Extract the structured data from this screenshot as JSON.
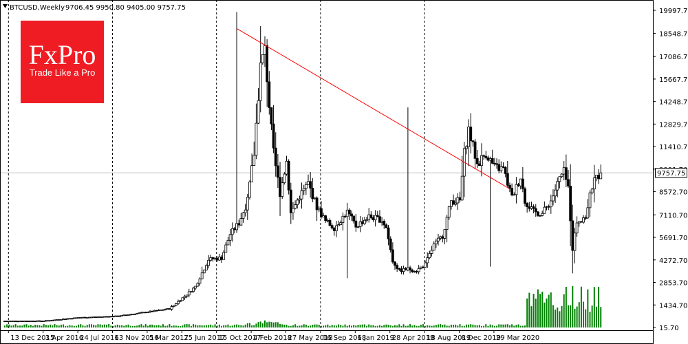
{
  "header": {
    "symbol_label": "BTCUSD,Weekly",
    "ohlc_text": "9706.45 9950.80 9405.00 9757.75"
  },
  "logo": {
    "brand": "FxPro",
    "tagline": "Trade Like a Pro",
    "color": "#ef1c24"
  },
  "chart_data": {
    "type": "candlestick",
    "price_axis": {
      "ticks": [
        "19997.70",
        "18548.70",
        "17086.70",
        "15667.70",
        "14248.70",
        "12829.70",
        "11410.70",
        "9991.70",
        "8572.70",
        "7110.70",
        "5691.70",
        "4272.70",
        "2853.70",
        "1434.70",
        "15.70"
      ],
      "ylim": [
        15.7,
        19997.7
      ]
    },
    "time_axis": {
      "ticks": [
        "13 Dec 2015",
        "3 Apr 2016",
        "24 Jul 2016",
        "13 Nov 2016",
        "5 Mar 2017",
        "25 Jun 2017",
        "15 Oct 2017",
        "4 Feb 2018",
        "27 May 2018",
        "16 Sep 2018",
        "6 Jan 2019",
        "28 Apr 2019",
        "18 Aug 2019",
        "8 Dec 2019",
        "29 Mar 2020"
      ]
    },
    "current_price_label": "9757.75",
    "current_price": 9757.75,
    "grid": "vertical dashed separators",
    "trendline": {
      "color": "#ff0000",
      "start": {
        "date": "17 Dec 2017",
        "price": 18850
      },
      "end": {
        "date": "10 May 2020",
        "price": 8750
      }
    },
    "colors": {
      "bull": "#ffffff",
      "bear": "#000000",
      "volume": "#008000",
      "current_line": "#c0c0c0",
      "separator": "#000000"
    },
    "candles_summary": {
      "all_time_high": 19891,
      "ath_week": "17 Dec 2017",
      "low_2018": 3122,
      "low_2020": 3850,
      "high_2019": 13880
    }
  }
}
